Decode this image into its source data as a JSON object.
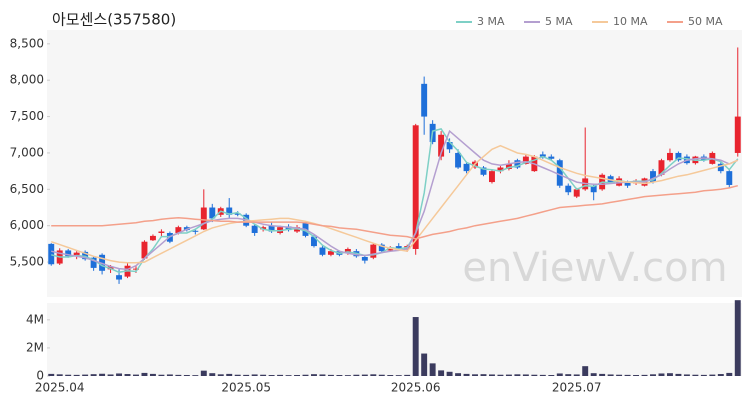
{
  "chart_data": {
    "type": "candlestick",
    "title": "아모센스(357580)",
    "watermark": "enViewV.com",
    "categories": [
      null,
      "2025.04",
      null,
      null,
      null,
      null,
      null,
      null,
      null,
      null,
      null,
      null,
      null,
      null,
      null,
      null,
      null,
      null,
      null,
      null,
      null,
      null,
      null,
      "2025.05",
      null,
      null,
      null,
      null,
      null,
      null,
      null,
      null,
      null,
      null,
      null,
      null,
      null,
      null,
      null,
      null,
      null,
      null,
      null,
      "2025.06",
      null,
      null,
      null,
      null,
      null,
      null,
      null,
      null,
      null,
      null,
      null,
      null,
      null,
      null,
      null,
      null,
      null,
      null,
      "2025.07",
      null,
      null,
      null,
      null,
      null,
      null,
      null,
      null,
      null,
      null,
      null,
      null,
      null,
      null,
      null,
      null,
      null,
      null,
      null
    ],
    "open": [
      5750,
      5480,
      5660,
      5580,
      5640,
      5560,
      5600,
      5400,
      5320,
      5300,
      5400,
      5550,
      5800,
      5900,
      5900,
      5900,
      5980,
      5930,
      5950,
      6250,
      6150,
      6250,
      6170,
      6150,
      6000,
      5950,
      6000,
      5900,
      5990,
      5920,
      6050,
      5850,
      5700,
      5600,
      5650,
      5620,
      5650,
      5570,
      5560,
      5740,
      5660,
      5720,
      5680,
      5680,
      7950,
      7400,
      6950,
      7150,
      7000,
      6850,
      6800,
      6800,
      6600,
      6750,
      6780,
      6900,
      6850,
      6750,
      6980,
      6950,
      6900,
      6550,
      6400,
      6500,
      6550,
      6500,
      6680,
      6550,
      6600,
      6580,
      6550,
      6750,
      6700,
      6900,
      7000,
      6950,
      6860,
      6950,
      6850,
      6850,
      6750,
      7000
    ],
    "high": [
      5760,
      5690,
      5680,
      5650,
      5660,
      5580,
      5620,
      5460,
      5400,
      5480,
      5450,
      5800,
      5880,
      5950,
      5920,
      6000,
      6000,
      5960,
      6500,
      6300,
      6260,
      6380,
      6200,
      6170,
      6020,
      6000,
      6050,
      6000,
      6020,
      6010,
      6060,
      5870,
      5720,
      5680,
      5660,
      5700,
      5680,
      5600,
      5760,
      5760,
      5720,
      5760,
      5740,
      7400,
      8050,
      7450,
      7300,
      7200,
      7050,
      6880,
      6900,
      6820,
      6760,
      6820,
      6900,
      6920,
      6980,
      6970,
      7020,
      6980,
      6920,
      6580,
      6520,
      7350,
      6580,
      6720,
      6700,
      6680,
      6620,
      6640,
      6660,
      6780,
      6920,
      7060,
      7020,
      6980,
      6960,
      6980,
      7020,
      6880,
      6780,
      8450
    ],
    "low": [
      5450,
      5460,
      5560,
      5540,
      5520,
      5380,
      5330,
      5350,
      5200,
      5280,
      5350,
      5530,
      5790,
      5850,
      5760,
      5880,
      5920,
      5880,
      5940,
      6050,
      6120,
      6100,
      6130,
      5980,
      5860,
      5920,
      5900,
      5880,
      5920,
      5900,
      5840,
      5700,
      5580,
      5580,
      5580,
      5600,
      5560,
      5480,
      5540,
      5620,
      5640,
      5660,
      5640,
      5600,
      7250,
      7120,
      6900,
      7000,
      6780,
      6720,
      6780,
      6680,
      6580,
      6720,
      6760,
      6780,
      6840,
      6740,
      6920,
      6900,
      6520,
      6420,
      6380,
      6480,
      6350,
      6480,
      6580,
      6540,
      6520,
      6560,
      6540,
      6580,
      6680,
      6880,
      6880,
      6840,
      6840,
      6880,
      6840,
      6720,
      6520,
      6950
    ],
    "close": [
      5470,
      5660,
      5580,
      5630,
      5540,
      5420,
      5380,
      5440,
      5260,
      5450,
      5410,
      5780,
      5860,
      5920,
      5780,
      5980,
      5940,
      5920,
      6250,
      6100,
      6240,
      6150,
      6150,
      6000,
      5900,
      5980,
      5920,
      5980,
      5940,
      5980,
      5860,
      5720,
      5600,
      5650,
      5600,
      5680,
      5580,
      5520,
      5740,
      5650,
      5700,
      5680,
      5720,
      7380,
      7500,
      7150,
      7250,
      7050,
      6800,
      6750,
      6880,
      6700,
      6750,
      6800,
      6850,
      6800,
      6950,
      6950,
      6950,
      6920,
      6550,
      6460,
      6500,
      6650,
      6460,
      6700,
      6600,
      6650,
      6550,
      6620,
      6650,
      6600,
      6900,
      7000,
      6900,
      6860,
      6950,
      6900,
      7000,
      6750,
      6560,
      7500
    ],
    "volume": [
      150000,
      120000,
      90000,
      80000,
      100000,
      130000,
      160000,
      110000,
      180000,
      140000,
      100000,
      220000,
      150000,
      90000,
      110000,
      80000,
      70000,
      60000,
      380000,
      200000,
      120000,
      150000,
      90000,
      80000,
      110000,
      90000,
      70000,
      80000,
      60000,
      70000,
      90000,
      130000,
      110000,
      80000,
      70000,
      60000,
      90000,
      100000,
      120000,
      90000,
      70000,
      60000,
      80000,
      4200000,
      1600000,
      900000,
      400000,
      300000,
      200000,
      150000,
      120000,
      130000,
      110000,
      90000,
      100000,
      120000,
      110000,
      90000,
      80000,
      70000,
      180000,
      130000,
      110000,
      700000,
      200000,
      150000,
      110000,
      90000,
      80000,
      70000,
      80000,
      120000,
      180000,
      200000,
      150000,
      110000,
      90000,
      80000,
      100000,
      140000,
      220000,
      5400000
    ],
    "up_color": "#e8242e",
    "down_color": "#1e6fd9",
    "volume_color": "#3b3b5e",
    "ylim": [
      5020,
      8690
    ],
    "yticks": [
      {
        "value": 5500,
        "label": "5,500"
      },
      {
        "value": 6000,
        "label": "6,000"
      },
      {
        "value": 6500,
        "label": "6,500"
      },
      {
        "value": 7000,
        "label": "7,000"
      },
      {
        "value": 7500,
        "label": "7,500"
      },
      {
        "value": 8000,
        "label": "8,000"
      },
      {
        "value": 8500,
        "label": "8,500"
      }
    ],
    "volume_ylim": [
      0,
      5200000
    ],
    "volume_yticks": [
      0,
      {
        "value": 2000000,
        "label": "2M"
      },
      {
        "value": 4000000,
        "label": "4M"
      }
    ],
    "legend": "top-right",
    "series": [
      {
        "name": "3 MA",
        "color": "#7ed0c6",
        "values": [
          5600,
          5570,
          5570,
          5590,
          5580,
          5530,
          5450,
          5410,
          5360,
          5380,
          5370,
          5550,
          5680,
          5850,
          5850,
          5900,
          5900,
          5950,
          6030,
          6090,
          6200,
          6160,
          6180,
          6100,
          6020,
          5950,
          5930,
          5930,
          5950,
          5960,
          5930,
          5850,
          5730,
          5660,
          5620,
          5640,
          5620,
          5590,
          5600,
          5630,
          5700,
          5680,
          5700,
          5900,
          6450,
          7300,
          7330,
          7150,
          7030,
          6870,
          6820,
          6780,
          6770,
          6750,
          6800,
          6820,
          6870,
          6900,
          6950,
          6900,
          6800,
          6650,
          6500,
          6550,
          6540,
          6600,
          6590,
          6620,
          6600,
          6610,
          6610,
          6630,
          6720,
          6830,
          6930,
          6920,
          6900,
          6900,
          6920,
          6880,
          6770,
          6920
        ]
      },
      {
        "name": "5 MA",
        "color": "#b49fd0",
        "values": [
          5650,
          5620,
          5600,
          5580,
          5560,
          5520,
          5480,
          5440,
          5410,
          5400,
          5450,
          5550,
          5650,
          5750,
          5850,
          5900,
          5950,
          5990,
          6030,
          6070,
          6090,
          6100,
          6100,
          6080,
          6050,
          6020,
          6000,
          5990,
          5980,
          5970,
          5950,
          5880,
          5800,
          5720,
          5650,
          5620,
          5600,
          5590,
          5610,
          5630,
          5650,
          5660,
          5680,
          5900,
          6200,
          6600,
          7000,
          7300,
          7200,
          7100,
          7000,
          6900,
          6850,
          6830,
          6850,
          6870,
          6880,
          6850,
          6800,
          6750,
          6700,
          6650,
          6600,
          6580,
          6570,
          6570,
          6580,
          6590,
          6600,
          6600,
          6600,
          6650,
          6700,
          6780,
          6850,
          6900,
          6920,
          6930,
          6920,
          6900,
          6850,
          6900
        ]
      },
      {
        "name": "10 MA",
        "color": "#f5c99a",
        "values": [
          5780,
          5740,
          5700,
          5660,
          5620,
          5580,
          5550,
          5520,
          5500,
          5490,
          5490,
          5500,
          5560,
          5620,
          5680,
          5740,
          5800,
          5860,
          5920,
          5970,
          6000,
          6030,
          6050,
          6060,
          6070,
          6080,
          6090,
          6100,
          6100,
          6080,
          6060,
          6030,
          6000,
          5960,
          5920,
          5880,
          5840,
          5800,
          5760,
          5720,
          5690,
          5670,
          5650,
          5800,
          5950,
          6100,
          6250,
          6400,
          6550,
          6700,
          6850,
          6950,
          7050,
          7100,
          7050,
          7000,
          6980,
          6950,
          6900,
          6850,
          6800,
          6760,
          6720,
          6690,
          6670,
          6650,
          6630,
          6610,
          6600,
          6590,
          6580,
          6600,
          6620,
          6650,
          6680,
          6700,
          6730,
          6760,
          6790,
          6820,
          6850,
          6900
        ]
      },
      {
        "name": "50 MA",
        "color": "#f4a08a",
        "values": [
          6000,
          6000,
          6000,
          6000,
          6000,
          6000,
          6000,
          6010,
          6020,
          6030,
          6040,
          6060,
          6070,
          6090,
          6100,
          6110,
          6100,
          6090,
          6080,
          6070,
          6060,
          6060,
          6050,
          6050,
          6050,
          6050,
          6050,
          6050,
          6050,
          6050,
          6040,
          6020,
          6000,
          5990,
          5970,
          5960,
          5950,
          5930,
          5910,
          5890,
          5870,
          5860,
          5850,
          5820,
          5850,
          5880,
          5900,
          5920,
          5950,
          5970,
          6000,
          6020,
          6040,
          6060,
          6080,
          6100,
          6130,
          6160,
          6190,
          6220,
          6250,
          6260,
          6270,
          6280,
          6290,
          6300,
          6320,
          6340,
          6360,
          6380,
          6400,
          6410,
          6420,
          6430,
          6440,
          6450,
          6460,
          6480,
          6490,
          6500,
          6520,
          6550
        ]
      }
    ]
  }
}
